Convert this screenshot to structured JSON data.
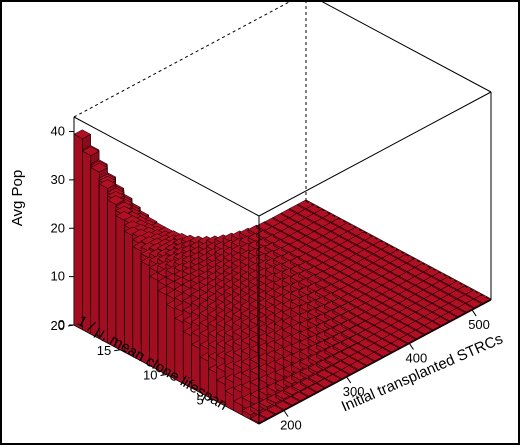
{
  "chart_data": {
    "type": "bar3d",
    "title": "",
    "zlabel": "Avg Pop",
    "xlabel": "Initial transplanted STRCs",
    "ylabel": "1 / μ, mean clone lifespan",
    "z_ticks": [
      "0",
      "10",
      "20",
      "30",
      "40"
    ],
    "x_ticks": [
      "200",
      "300",
      "400",
      "500"
    ],
    "y_ticks": [
      "5",
      "10",
      "15",
      "20"
    ],
    "zlim": [
      0,
      43
    ],
    "xlim": [
      160,
      530
    ],
    "ylim": [
      0,
      20
    ],
    "bar_color": "#b00f24",
    "surface_description": "Avg Pop rises toward small initial STRC count and long clone lifespan; approximately z = 43 * (1 - (x - 160) / 370)^3 * (y / 20)^1.4",
    "peak": {
      "initial_strcs": 160,
      "mean_clone_lifespan": 20,
      "avg_pop": 43
    },
    "corner_values": [
      {
        "initial_strcs": 160,
        "mean_clone_lifespan": 0.5,
        "avg_pop": 0.4
      },
      {
        "initial_strcs": 530,
        "mean_clone_lifespan": 20,
        "avg_pop": 0
      },
      {
        "initial_strcs": 530,
        "mean_clone_lifespan": 0.5,
        "avg_pop": 0
      }
    ]
  }
}
